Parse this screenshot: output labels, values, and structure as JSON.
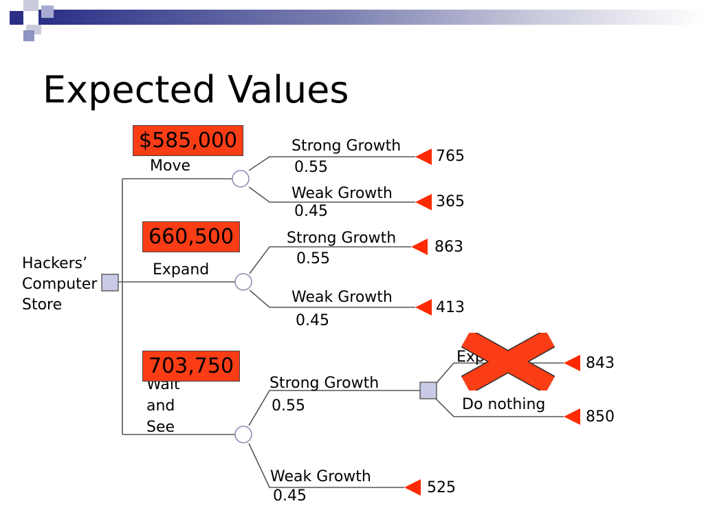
{
  "slide": {
    "title": "Expected Values"
  },
  "colors": {
    "accent": "#2b2f86",
    "ev_box_fill": "#fb3d16",
    "terminal_marker": "#ff2a00",
    "decision_node_fill": "#c9cae6",
    "cross_mark": "#fb3d16"
  },
  "tree": {
    "root_label": [
      "Hackers’",
      "Computer",
      "Store"
    ],
    "alternatives": {
      "move": {
        "label": "Move",
        "expected_value": "$585,000",
        "strong": {
          "label": "Strong Growth",
          "prob": "0.55",
          "payoff": "765"
        },
        "weak": {
          "label": "Weak Growth",
          "prob": "0.45",
          "payoff": "365"
        }
      },
      "expand": {
        "label": "Expand",
        "expected_value": "660,500",
        "strong": {
          "label": "Strong Growth",
          "prob": "0.55",
          "payoff": "863"
        },
        "weak": {
          "label": "Weak Growth",
          "prob": "0.45",
          "payoff": "413"
        }
      },
      "wait": {
        "label_lines": [
          "Wait",
          "and",
          "See"
        ],
        "expected_value": "703,750",
        "strong": {
          "label": "Strong Growth",
          "prob": "0.55"
        },
        "weak": {
          "label": "Weak Growth",
          "prob": "0.45",
          "payoff": "525"
        },
        "second_decision": {
          "expand": {
            "label": "Expand",
            "payoff": "843",
            "crossed_out": true
          },
          "do_nothing": {
            "label": "Do nothing",
            "payoff": "850"
          }
        }
      }
    }
  }
}
